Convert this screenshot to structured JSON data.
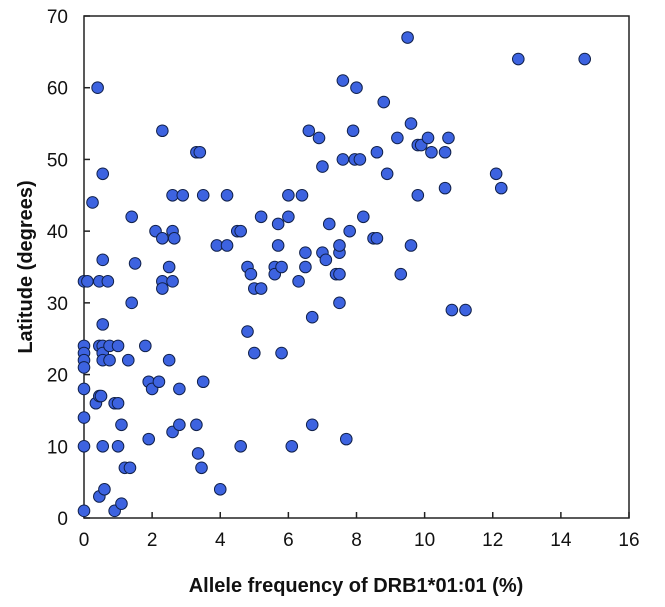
{
  "chart_data": {
    "type": "scatter",
    "title": "",
    "xlabel": "Allele frequency of DRB1*01:01 (%)",
    "ylabel": "Latitude (degrees)",
    "xlim": [
      0,
      16
    ],
    "ylim": [
      0,
      70
    ],
    "xticks": [
      "0",
      "2",
      "4",
      "6",
      "8",
      "10",
      "12",
      "14",
      "16"
    ],
    "yticks": [
      "0",
      "10",
      "20",
      "30",
      "40",
      "50",
      "60",
      "70"
    ],
    "grid": false,
    "legend": "none",
    "marker_color": "#3d63e0",
    "marker_edge_color": "#10204a",
    "points": [
      [
        0.0,
        33
      ],
      [
        0.0,
        24
      ],
      [
        0.0,
        23
      ],
      [
        0.0,
        22
      ],
      [
        0.0,
        21
      ],
      [
        0.0,
        18
      ],
      [
        0.0,
        14
      ],
      [
        0.0,
        10
      ],
      [
        0.0,
        1
      ],
      [
        0.1,
        33
      ],
      [
        0.25,
        44
      ],
      [
        0.35,
        16
      ],
      [
        0.4,
        60
      ],
      [
        0.45,
        33
      ],
      [
        0.45,
        24
      ],
      [
        0.45,
        17
      ],
      [
        0.45,
        3
      ],
      [
        0.5,
        17
      ],
      [
        0.55,
        48
      ],
      [
        0.55,
        36
      ],
      [
        0.55,
        27
      ],
      [
        0.55,
        24
      ],
      [
        0.55,
        23
      ],
      [
        0.55,
        22
      ],
      [
        0.55,
        10
      ],
      [
        0.6,
        4
      ],
      [
        0.7,
        33
      ],
      [
        0.75,
        22
      ],
      [
        0.75,
        24
      ],
      [
        0.9,
        16
      ],
      [
        0.9,
        1
      ],
      [
        1.0,
        24
      ],
      [
        1.0,
        16
      ],
      [
        1.0,
        10
      ],
      [
        1.1,
        13
      ],
      [
        1.1,
        2
      ],
      [
        1.2,
        7
      ],
      [
        1.3,
        22
      ],
      [
        1.35,
        7
      ],
      [
        1.4,
        42
      ],
      [
        1.4,
        30
      ],
      [
        1.5,
        35.5
      ],
      [
        1.8,
        24
      ],
      [
        1.9,
        19
      ],
      [
        1.9,
        11
      ],
      [
        2.0,
        18
      ],
      [
        2.1,
        40
      ],
      [
        2.2,
        19
      ],
      [
        2.3,
        54
      ],
      [
        2.3,
        39
      ],
      [
        2.3,
        33
      ],
      [
        2.3,
        32
      ],
      [
        2.5,
        35
      ],
      [
        2.5,
        22
      ],
      [
        2.6,
        45
      ],
      [
        2.6,
        40
      ],
      [
        2.6,
        33
      ],
      [
        2.6,
        12
      ],
      [
        2.65,
        39
      ],
      [
        2.8,
        18
      ],
      [
        2.8,
        13
      ],
      [
        2.9,
        45
      ],
      [
        3.3,
        13
      ],
      [
        3.3,
        51
      ],
      [
        3.35,
        9
      ],
      [
        3.4,
        51
      ],
      [
        3.45,
        7
      ],
      [
        3.5,
        45
      ],
      [
        3.5,
        19
      ],
      [
        3.9,
        38
      ],
      [
        4.0,
        4
      ],
      [
        4.2,
        38
      ],
      [
        4.2,
        45
      ],
      [
        4.5,
        40
      ],
      [
        4.6,
        40
      ],
      [
        4.6,
        10
      ],
      [
        4.8,
        35
      ],
      [
        4.8,
        26
      ],
      [
        4.9,
        34
      ],
      [
        5.0,
        32
      ],
      [
        5.0,
        23
      ],
      [
        5.2,
        42
      ],
      [
        5.2,
        32
      ],
      [
        5.6,
        35
      ],
      [
        5.6,
        34
      ],
      [
        5.7,
        41
      ],
      [
        5.7,
        38
      ],
      [
        5.8,
        23
      ],
      [
        5.8,
        35
      ],
      [
        6.0,
        42
      ],
      [
        6.0,
        45
      ],
      [
        6.1,
        10
      ],
      [
        6.3,
        33
      ],
      [
        6.4,
        45
      ],
      [
        6.5,
        37
      ],
      [
        6.5,
        35
      ],
      [
        6.6,
        54
      ],
      [
        6.7,
        28
      ],
      [
        6.7,
        13
      ],
      [
        6.9,
        53
      ],
      [
        7.0,
        49
      ],
      [
        7.0,
        37
      ],
      [
        7.1,
        36
      ],
      [
        7.2,
        41
      ],
      [
        7.4,
        34
      ],
      [
        7.5,
        34
      ],
      [
        7.5,
        37
      ],
      [
        7.5,
        38
      ],
      [
        7.5,
        30
      ],
      [
        7.6,
        61
      ],
      [
        7.6,
        50
      ],
      [
        7.7,
        11
      ],
      [
        7.8,
        40
      ],
      [
        7.9,
        54
      ],
      [
        7.95,
        50
      ],
      [
        8.0,
        60
      ],
      [
        8.1,
        50
      ],
      [
        8.2,
        42
      ],
      [
        8.5,
        39
      ],
      [
        8.6,
        51
      ],
      [
        8.6,
        39
      ],
      [
        8.8,
        58
      ],
      [
        8.9,
        48
      ],
      [
        9.2,
        53
      ],
      [
        9.3,
        34
      ],
      [
        9.5,
        67
      ],
      [
        9.6,
        55
      ],
      [
        9.6,
        38
      ],
      [
        9.8,
        52
      ],
      [
        9.8,
        45
      ],
      [
        9.9,
        52
      ],
      [
        10.1,
        53
      ],
      [
        10.2,
        51
      ],
      [
        10.6,
        51
      ],
      [
        10.6,
        46
      ],
      [
        10.7,
        53
      ],
      [
        10.8,
        29
      ],
      [
        11.2,
        29
      ],
      [
        12.1,
        48
      ],
      [
        12.25,
        46
      ],
      [
        12.75,
        64
      ],
      [
        14.7,
        64
      ]
    ]
  }
}
